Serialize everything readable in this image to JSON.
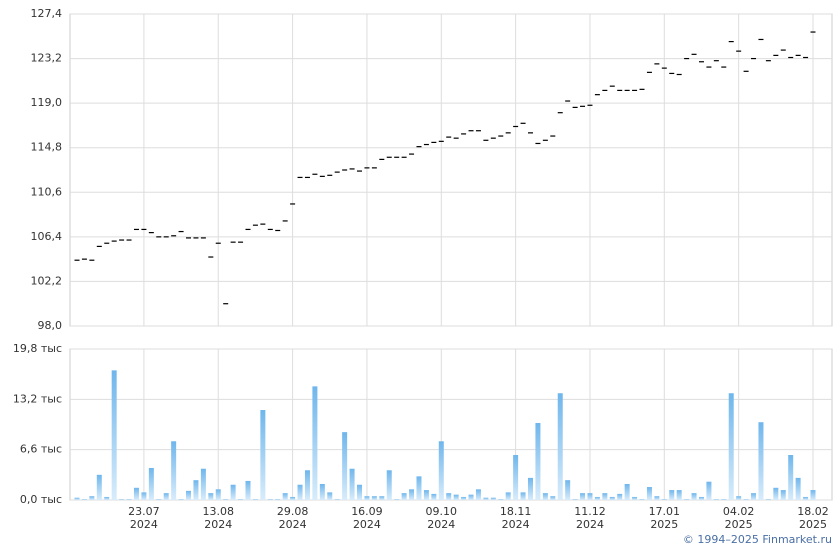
{
  "chart_data": [
    {
      "type": "dash",
      "color": "#000000",
      "ylim": [
        98.0,
        127.4
      ],
      "yticks": [
        {
          "value": 98.0,
          "label": "98,0"
        },
        {
          "value": 102.2,
          "label": "102,2"
        },
        {
          "value": 106.4,
          "label": "106,4"
        },
        {
          "value": 110.6,
          "label": "110,6"
        },
        {
          "value": 114.8,
          "label": "114,8"
        },
        {
          "value": 119.0,
          "label": "119,0"
        },
        {
          "value": 123.2,
          "label": "123,2"
        },
        {
          "value": 127.4,
          "label": "127,4"
        }
      ],
      "grid": true,
      "values": [
        104.2,
        104.3,
        104.2,
        105.5,
        105.8,
        106.0,
        106.1,
        106.1,
        107.1,
        107.1,
        106.8,
        106.4,
        106.4,
        106.5,
        106.9,
        106.3,
        106.3,
        106.3,
        104.5,
        105.8,
        100.1,
        105.9,
        105.9,
        107.1,
        107.5,
        107.6,
        107.1,
        107.0,
        107.9,
        109.5,
        112.0,
        112.0,
        112.3,
        112.1,
        112.2,
        112.5,
        112.7,
        112.8,
        112.6,
        112.9,
        112.9,
        113.7,
        113.9,
        113.9,
        113.9,
        114.2,
        114.9,
        115.1,
        115.3,
        115.4,
        115.8,
        115.7,
        116.1,
        116.4,
        116.4,
        115.5,
        115.7,
        115.9,
        116.2,
        116.8,
        117.1,
        116.2,
        115.2,
        115.5,
        115.9,
        118.1,
        119.2,
        118.6,
        118.7,
        118.8,
        119.8,
        120.2,
        120.6,
        120.2,
        120.2,
        120.2,
        120.3,
        121.9,
        122.7,
        122.3,
        121.8,
        121.7,
        123.2,
        123.6,
        122.9,
        122.4,
        123.0,
        122.4,
        124.8,
        123.9,
        122.0,
        123.2,
        125.0,
        123.0,
        123.5,
        124.0,
        123.3,
        123.5,
        123.3,
        125.7
      ]
    },
    {
      "type": "bar",
      "color": "#6fb6ec",
      "ylim": [
        0,
        19.8
      ],
      "yticks": [
        {
          "value": 0,
          "label": "0,0 тыс"
        },
        {
          "value": 6.6,
          "label": "6,6 тыс"
        },
        {
          "value": 13.2,
          "label": "13,2 тыс"
        },
        {
          "value": 19.8,
          "label": "19,8 тыс"
        }
      ],
      "grid": true,
      "categories": [
        null,
        null,
        null,
        null,
        null,
        null,
        null,
        null,
        null,
        "23.07\n2024",
        null,
        null,
        null,
        null,
        null,
        null,
        null,
        null,
        null,
        "13.08\n2024",
        null,
        null,
        null,
        null,
        null,
        null,
        null,
        null,
        null,
        "29.08\n2024",
        null,
        null,
        null,
        null,
        null,
        null,
        null,
        null,
        null,
        "16.09\n2024",
        null,
        null,
        null,
        null,
        null,
        null,
        null,
        null,
        null,
        "09.10\n2024",
        null,
        null,
        null,
        null,
        null,
        null,
        null,
        null,
        null,
        "18.11\n2024",
        null,
        null,
        null,
        null,
        null,
        null,
        null,
        null,
        null,
        "11.12\n2024",
        null,
        null,
        null,
        null,
        null,
        null,
        null,
        null,
        null,
        "17.01\n2025",
        null,
        null,
        null,
        null,
        null,
        null,
        null,
        null,
        null,
        "04.02\n2025",
        null,
        null,
        null,
        null,
        null,
        null,
        null,
        null,
        null,
        "18.02\n2025"
      ],
      "values": [
        0.3,
        0.1,
        0.5,
        3.3,
        0.4,
        17.0,
        0.1,
        0.1,
        1.6,
        1.0,
        4.2,
        0.1,
        0.9,
        7.7,
        0.1,
        1.2,
        2.6,
        4.1,
        0.9,
        1.4,
        0.1,
        2.0,
        0.1,
        2.5,
        0.1,
        11.8,
        0.1,
        0.1,
        0.9,
        0.4,
        2.0,
        3.9,
        14.9,
        2.1,
        1.0,
        0.1,
        8.9,
        4.1,
        2.0,
        0.5,
        0.5,
        0.5,
        3.9,
        0.1,
        0.9,
        1.4,
        3.1,
        1.3,
        0.8,
        7.7,
        0.9,
        0.7,
        0.4,
        0.7,
        1.4,
        0.3,
        0.3,
        0.1,
        1.0,
        5.9,
        1.0,
        2.9,
        10.1,
        0.9,
        0.5,
        14.0,
        2.6,
        0.1,
        0.9,
        0.9,
        0.4,
        0.9,
        0.4,
        0.8,
        2.1,
        0.4,
        0.1,
        1.7,
        0.5,
        0.1,
        1.3,
        1.3,
        0.1,
        0.9,
        0.4,
        2.4,
        0.1,
        0.1,
        14.0,
        0.5,
        0.1,
        0.9,
        10.2,
        0.1,
        1.6,
        1.3,
        5.9,
        2.9,
        0.4,
        1.3
      ]
    }
  ],
  "footer": "© 1994–2025 Finmarket.ru"
}
